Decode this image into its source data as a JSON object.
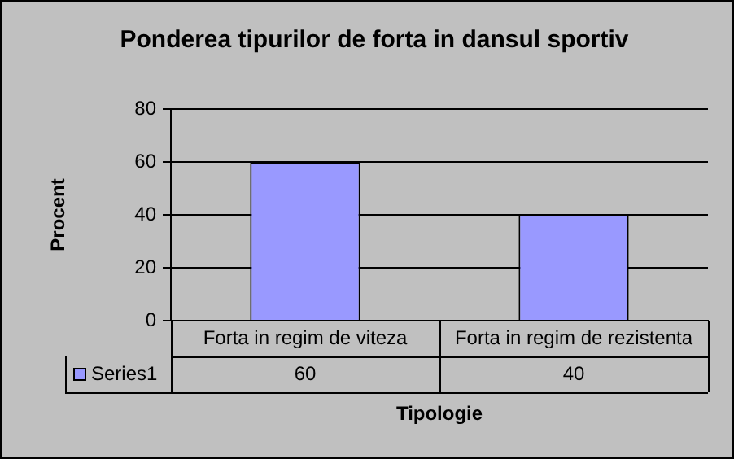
{
  "chart_data": {
    "type": "bar",
    "title": "Ponderea tipurilor de forta in dansul sportiv",
    "xlabel": "Tipologie",
    "ylabel": "Procent",
    "categories": [
      "Forta in regim de viteza",
      "Forta in regim de rezistenta"
    ],
    "series": [
      {
        "name": "Series1",
        "color": "#9999ff",
        "values": [
          60,
          40
        ]
      }
    ],
    "ylim": [
      0,
      80
    ],
    "yticks": [
      0,
      20,
      40,
      60,
      80
    ],
    "grid": "y",
    "data_labels": true,
    "legend": "bottom left"
  }
}
